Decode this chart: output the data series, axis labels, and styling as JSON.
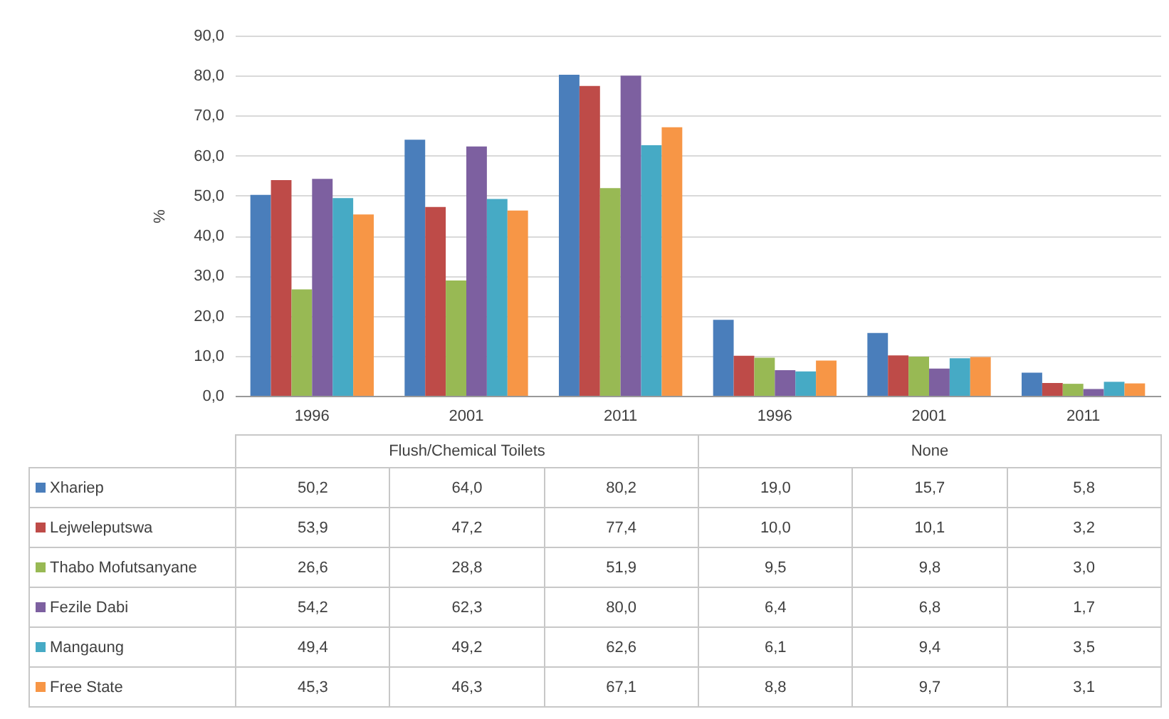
{
  "chart_data": {
    "type": "bar",
    "ylabel": "%",
    "categories": [
      "1996",
      "2001",
      "2011",
      "1996",
      "2001",
      "2011"
    ],
    "annotations": [
      "Flush/Chemical Toilets",
      "None"
    ],
    "series": [
      {
        "name": "Xhariep",
        "color": "#4a7ebb",
        "values": [
          50.2,
          64.0,
          80.2,
          19.0,
          15.7,
          5.8
        ],
        "value_labels": [
          "50,2",
          "64,0",
          "80,2",
          "19,0",
          "15,7",
          "5,8"
        ]
      },
      {
        "name": "Lejweleputswa",
        "color": "#be4b48",
        "values": [
          53.9,
          47.2,
          77.4,
          10.0,
          10.1,
          3.2
        ],
        "value_labels": [
          "53,9",
          "47,2",
          "77,4",
          "10,0",
          "10,1",
          "3,2"
        ]
      },
      {
        "name": "Thabo Mofutsanyane",
        "color": "#98b954",
        "values": [
          26.6,
          28.8,
          51.9,
          9.5,
          9.8,
          3.0
        ],
        "value_labels": [
          "26,6",
          "28,8",
          "51,9",
          "9,5",
          "9,8",
          "3,0"
        ]
      },
      {
        "name": "Fezile Dabi",
        "color": "#7d60a0",
        "values": [
          54.2,
          62.3,
          80.0,
          6.4,
          6.8,
          1.7
        ],
        "value_labels": [
          "54,2",
          "62,3",
          "80,0",
          "6,4",
          "6,8",
          "1,7"
        ]
      },
      {
        "name": "Mangaung",
        "color": "#46aac5",
        "values": [
          49.4,
          49.2,
          62.6,
          6.1,
          9.4,
          3.5
        ],
        "value_labels": [
          "49,4",
          "49,2",
          "62,6",
          "6,1",
          "9,4",
          "3,5"
        ]
      },
      {
        "name": "Free State",
        "color": "#f79646",
        "values": [
          45.3,
          46.3,
          67.1,
          8.8,
          9.7,
          3.1
        ],
        "value_labels": [
          "45,3",
          "46,3",
          "67,1",
          "8,8",
          "9,7",
          "3,1"
        ]
      }
    ],
    "ylim": [
      0,
      90
    ],
    "yticks": [
      {
        "value": 0,
        "label": "0,0"
      },
      {
        "value": 10,
        "label": "10,0"
      },
      {
        "value": 20,
        "label": "20,0"
      },
      {
        "value": 30,
        "label": "30,0"
      },
      {
        "value": 40,
        "label": "40,0"
      },
      {
        "value": 50,
        "label": "50,0"
      },
      {
        "value": 60,
        "label": "60,0"
      },
      {
        "value": 70,
        "label": "70,0"
      },
      {
        "value": 80,
        "label": "80,0"
      },
      {
        "value": 90,
        "label": "90,0"
      }
    ],
    "grid": "y",
    "legend": "bottom"
  }
}
